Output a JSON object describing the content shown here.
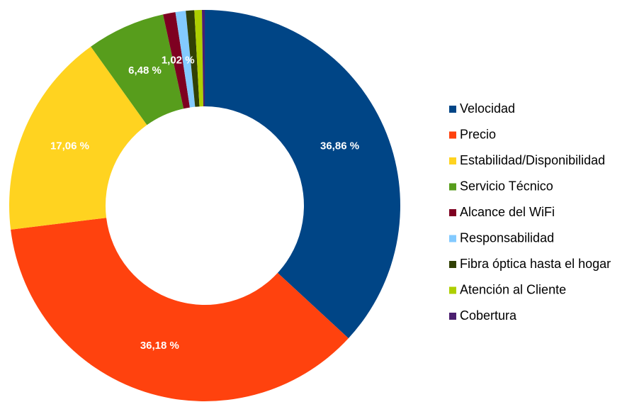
{
  "chart_data": {
    "type": "donut",
    "categories": [
      "Velocidad",
      "Precio",
      "Estabilidad/Disponibilidad",
      "Servicio Técnico",
      "Alcance del WiFi",
      "Responsabilidad",
      "Fibra óptica hasta el hogar",
      "Atención al Cliente",
      "Cobertura"
    ],
    "values": [
      36.86,
      36.18,
      17.06,
      6.48,
      1.02,
      0.85,
      0.7,
      0.62,
      0.23
    ],
    "value_labels": [
      "36,86 %",
      "36,18 %",
      "17,06 %",
      "6,48 %",
      "1,02 %",
      null,
      null,
      null,
      null
    ],
    "colors": [
      "#004586",
      "#ff420e",
      "#ffd320",
      "#579d1c",
      "#7e0021",
      "#83caff",
      "#314004",
      "#aecf00",
      "#4b1f6f"
    ],
    "legend": "right"
  }
}
